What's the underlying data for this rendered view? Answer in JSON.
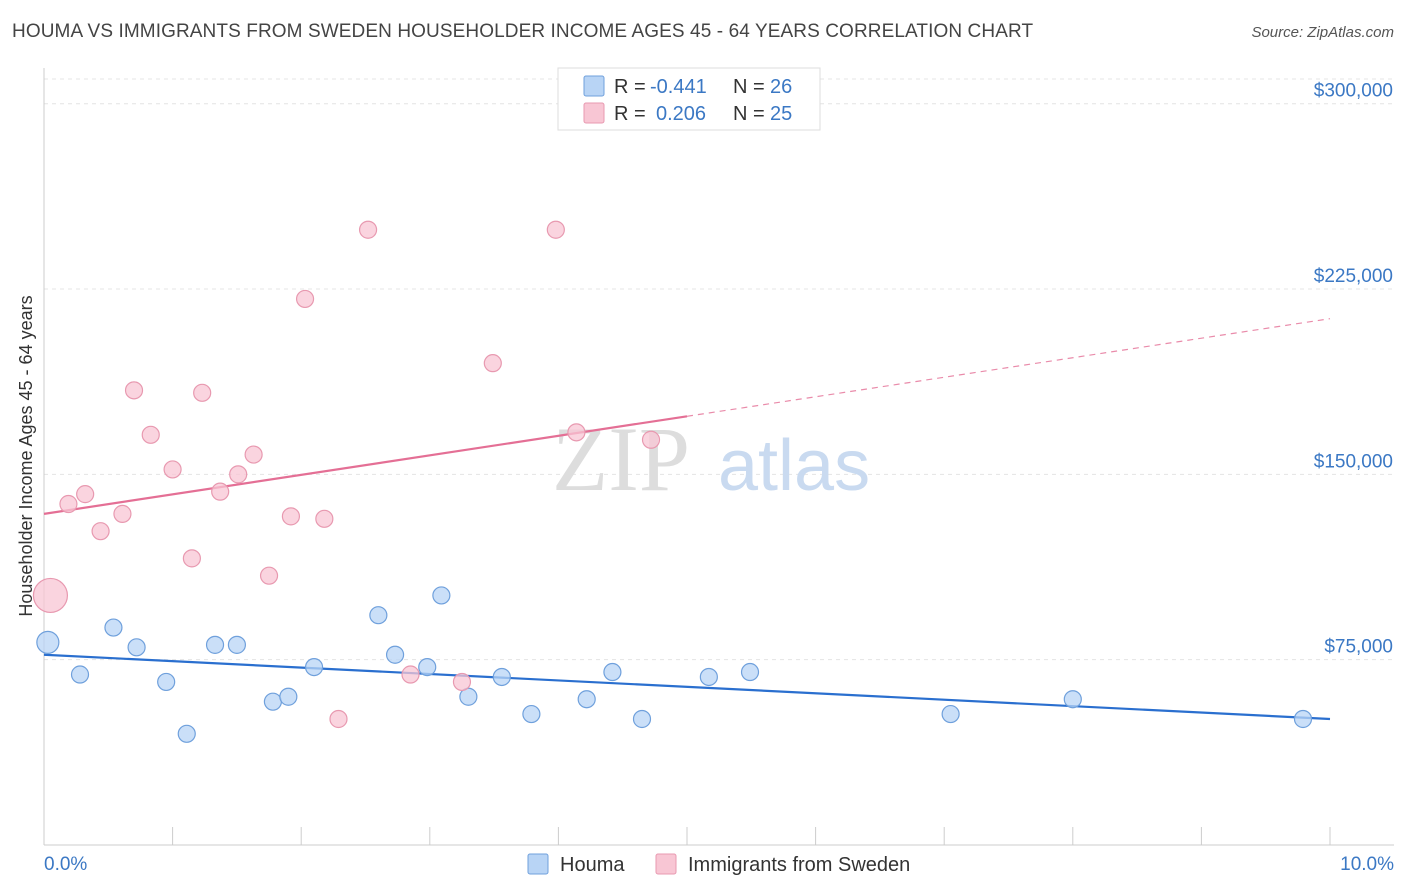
{
  "title": "HOUMA VS IMMIGRANTS FROM SWEDEN HOUSEHOLDER INCOME AGES 45 - 64 YEARS CORRELATION CHART",
  "source": "Source: ZipAtlas.com",
  "watermark": {
    "part1": "ZIP",
    "part2": "atlas"
  },
  "legend_top": {
    "rows": [
      {
        "r_label": "R =",
        "r_value": "-0.441",
        "n_label": "N =",
        "n_value": "26",
        "color": "#b8d4f5"
      },
      {
        "r_label": "R =",
        "r_value": "0.206",
        "n_label": "N =",
        "n_value": "25",
        "color": "#f8c6d4"
      }
    ]
  },
  "legend_bottom": {
    "items": [
      {
        "label": "Houma",
        "color": "#b8d4f5"
      },
      {
        "label": "Immigrants from Sweden",
        "color": "#f8c6d4"
      }
    ]
  },
  "chart_data": {
    "type": "scatter",
    "title": "HOUMA VS IMMIGRANTS FROM SWEDEN HOUSEHOLDER INCOME AGES 45 - 64 YEARS CORRELATION CHART",
    "xlabel": "",
    "ylabel": "Householder Income Ages 45 - 64 years",
    "xlim": [
      0,
      10
    ],
    "ylim": [
      0,
      310000
    ],
    "x_tick_labels": [
      "0.0%",
      "10.0%"
    ],
    "y_ticks": [
      75000,
      150000,
      225000,
      300000
    ],
    "y_tick_labels": [
      "$75,000",
      "$150,000",
      "$225,000",
      "$300,000"
    ],
    "grid": true,
    "legend_position": "top-center",
    "series": [
      {
        "name": "Houma",
        "color": "#b8d4f5",
        "stroke": "#6fa0dc",
        "line_color": "#2a6fcf",
        "trend": {
          "x": [
            0,
            10
          ],
          "y": [
            77000,
            51000
          ],
          "dashed_from": null
        },
        "points": [
          {
            "x": 0.03,
            "y": 82000,
            "big": false
          },
          {
            "x": 0.28,
            "y": 69000
          },
          {
            "x": 0.54,
            "y": 88000
          },
          {
            "x": 0.72,
            "y": 80000
          },
          {
            "x": 0.95,
            "y": 66000
          },
          {
            "x": 1.11,
            "y": 45000
          },
          {
            "x": 1.33,
            "y": 81000
          },
          {
            "x": 1.5,
            "y": 81000
          },
          {
            "x": 1.78,
            "y": 58000
          },
          {
            "x": 1.9,
            "y": 60000
          },
          {
            "x": 2.1,
            "y": 72000
          },
          {
            "x": 2.6,
            "y": 93000
          },
          {
            "x": 2.73,
            "y": 77000
          },
          {
            "x": 2.98,
            "y": 72000
          },
          {
            "x": 3.09,
            "y": 101000
          },
          {
            "x": 3.3,
            "y": 60000
          },
          {
            "x": 3.56,
            "y": 68000
          },
          {
            "x": 3.79,
            "y": 53000
          },
          {
            "x": 4.22,
            "y": 59000
          },
          {
            "x": 4.42,
            "y": 70000
          },
          {
            "x": 4.65,
            "y": 51000
          },
          {
            "x": 5.17,
            "y": 68000
          },
          {
            "x": 5.49,
            "y": 70000
          },
          {
            "x": 7.05,
            "y": 53000
          },
          {
            "x": 8.0,
            "y": 59000
          },
          {
            "x": 9.79,
            "y": 51000
          }
        ]
      },
      {
        "name": "Immigrants from Sweden",
        "color": "#f8c6d4",
        "stroke": "#e899b0",
        "line_color": "#e46f95",
        "trend": {
          "x": [
            0,
            10
          ],
          "y": [
            134000,
            213000
          ],
          "dashed_from": 5.0
        },
        "points": [
          {
            "x": 0.05,
            "y": 101000,
            "big": true
          },
          {
            "x": 0.19,
            "y": 138000
          },
          {
            "x": 0.32,
            "y": 142000
          },
          {
            "x": 0.44,
            "y": 127000
          },
          {
            "x": 0.61,
            "y": 134000
          },
          {
            "x": 0.7,
            "y": 184000
          },
          {
            "x": 0.83,
            "y": 166000
          },
          {
            "x": 1.0,
            "y": 152000
          },
          {
            "x": 1.15,
            "y": 116000
          },
          {
            "x": 1.23,
            "y": 183000
          },
          {
            "x": 1.37,
            "y": 143000
          },
          {
            "x": 1.51,
            "y": 150000
          },
          {
            "x": 1.63,
            "y": 158000
          },
          {
            "x": 1.75,
            "y": 109000
          },
          {
            "x": 1.92,
            "y": 133000
          },
          {
            "x": 2.03,
            "y": 221000
          },
          {
            "x": 2.18,
            "y": 132000
          },
          {
            "x": 2.29,
            "y": 51000
          },
          {
            "x": 2.52,
            "y": 249000
          },
          {
            "x": 2.85,
            "y": 69000
          },
          {
            "x": 3.25,
            "y": 66000
          },
          {
            "x": 3.49,
            "y": 195000
          },
          {
            "x": 3.98,
            "y": 249000
          },
          {
            "x": 4.14,
            "y": 167000
          },
          {
            "x": 4.72,
            "y": 164000
          }
        ]
      }
    ]
  }
}
